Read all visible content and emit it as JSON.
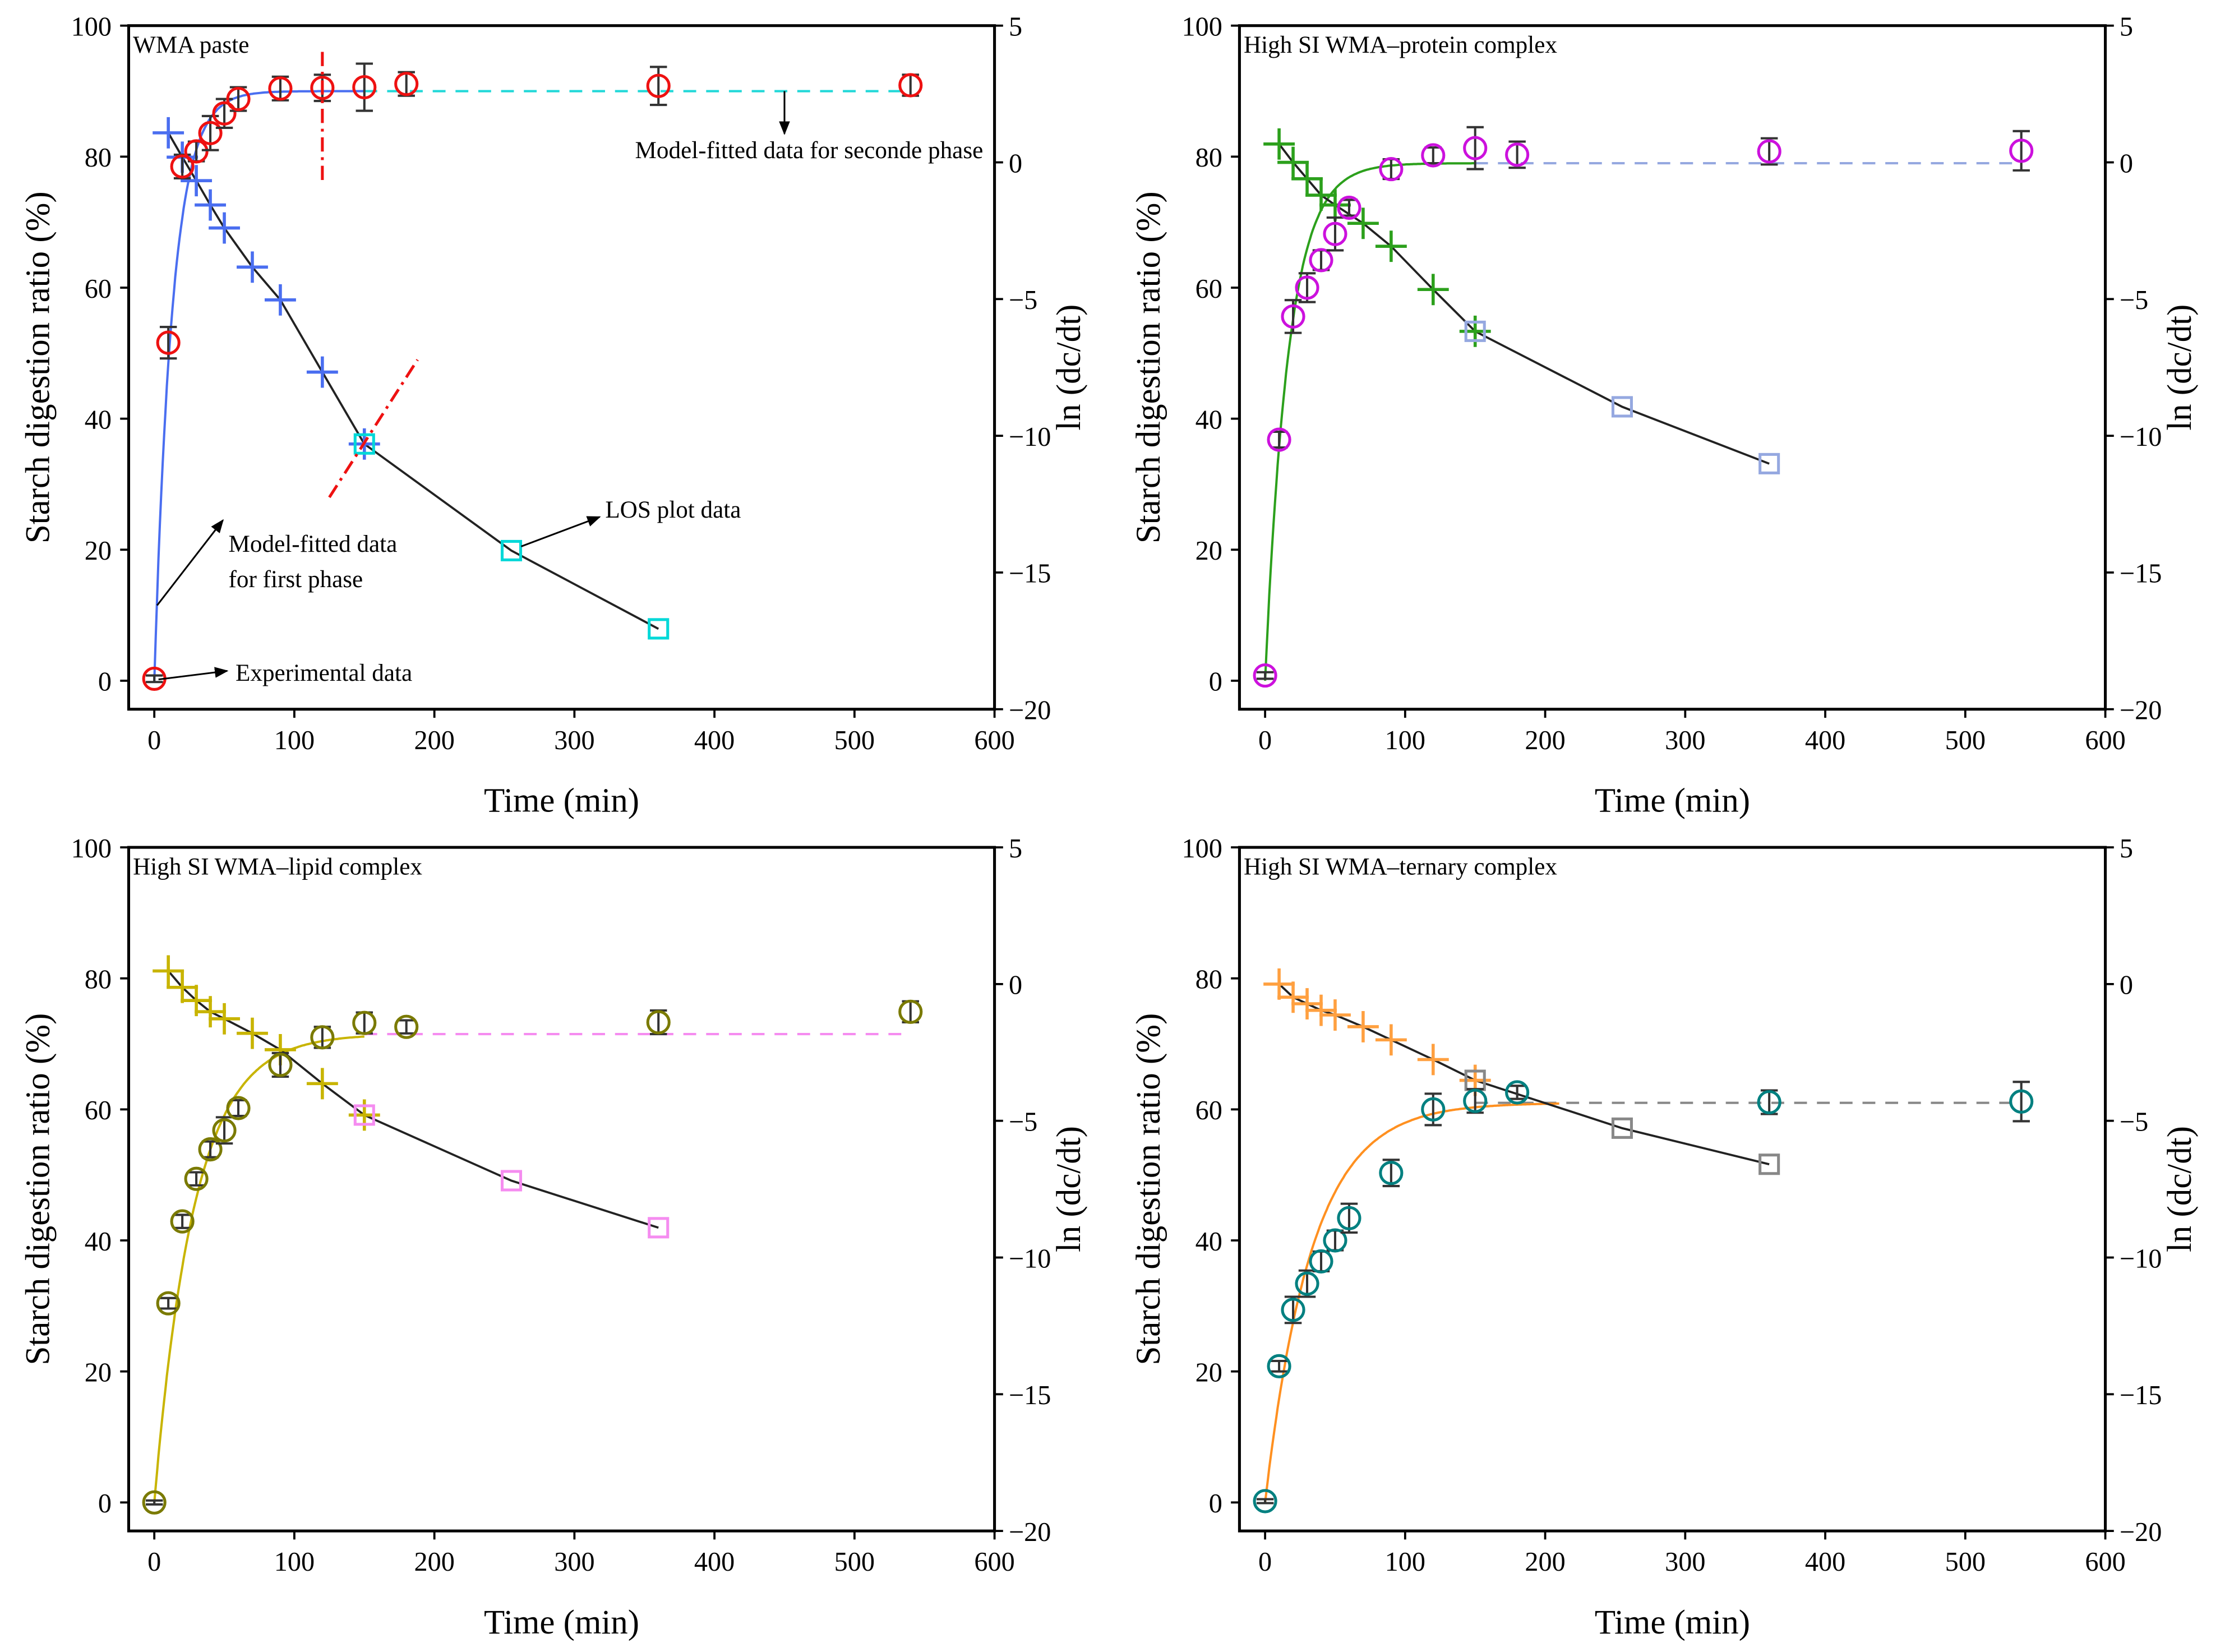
{
  "chart_data": [
    {
      "type": "scatter",
      "title": "WMA paste",
      "xlabel": "Time (min)",
      "ylabel": "Starch digestion ratio (%)",
      "y2label": "ln (dc/dt)",
      "xlim": [
        -18.3,
        600
      ],
      "ylim": [
        -4.35,
        100
      ],
      "y2lim": [
        -20,
        5
      ],
      "xticks": [
        0,
        100,
        200,
        300,
        400,
        500,
        600
      ],
      "yticks": [
        0,
        20,
        40,
        60,
        80,
        100
      ],
      "y2ticks": [
        -20,
        -15,
        -10,
        -5,
        0,
        5
      ],
      "colors": {
        "exp": "#ee1111",
        "fit": "#4a6ef0",
        "los": "#4a6ef0",
        "losq": "#00d8d8",
        "plateau": "#20d8d8",
        "line": "#222222"
      },
      "experimental": {
        "x": [
          0,
          10,
          20,
          30,
          40,
          50,
          60,
          90,
          120,
          150,
          180,
          360,
          540
        ],
        "y": [
          0.3,
          51.6,
          78.5,
          80.8,
          83.6,
          86.6,
          88.8,
          90.4,
          90.5,
          90.6,
          91.1,
          90.8,
          90.9
        ],
        "err": [
          0.5,
          2.4,
          1.8,
          1.5,
          2.6,
          2.2,
          1.8,
          1.8,
          2.0,
          3.6,
          1.8,
          2.9,
          1.6
        ]
      },
      "first_phase_fit": {
        "plateau": 90,
        "k": 0.077,
        "x_end": 150
      },
      "second_phase_plateau": {
        "value": 90,
        "x_start": 150,
        "x_end": 540
      },
      "los_first": {
        "x": [
          10,
          20,
          30,
          40,
          50,
          70,
          90,
          120,
          150
        ],
        "y": [
          1.08,
          0.19,
          -0.67,
          -1.56,
          -2.4,
          -3.83,
          -5.03,
          -7.67,
          -10.3
        ]
      },
      "los_second": {
        "x": [
          150,
          255,
          360
        ],
        "y": [
          -10.3,
          -14.2,
          -17.06
        ]
      },
      "annotations": [
        "Model-fitted data for seconde phase",
        "LOS plot data",
        "Model-fitted data",
        "for first phase",
        "Experimental data"
      ]
    },
    {
      "type": "scatter",
      "title": "High SI WMA–protein complex",
      "xlabel": "Time (min)",
      "ylabel": "Starch digestion ratio (%)",
      "y2label": "ln (dc/dt)",
      "xlim": [
        -18.3,
        600
      ],
      "ylim": [
        -4.35,
        100
      ],
      "y2lim": [
        -20,
        5
      ],
      "xticks": [
        0,
        100,
        200,
        300,
        400,
        500,
        600
      ],
      "yticks": [
        0,
        20,
        40,
        60,
        80,
        100
      ],
      "y2ticks": [
        -20,
        -15,
        -10,
        -5,
        0,
        5
      ],
      "colors": {
        "exp": "#cc11dd",
        "fit": "#2ca01c",
        "los": "#2ca01c",
        "losq": "#95a8e0",
        "plateau": "#95a8e0",
        "line": "#222222"
      },
      "experimental": {
        "x": [
          0,
          10,
          20,
          30,
          40,
          50,
          60,
          90,
          120,
          150,
          180,
          360,
          540
        ],
        "y": [
          0.8,
          36.8,
          55.6,
          60,
          64.2,
          68.2,
          72.2,
          78.1,
          80.2,
          81.3,
          80.3,
          80.8,
          80.9
        ],
        "err": [
          0.5,
          1.2,
          2.5,
          2.2,
          1.5,
          2.5,
          1.2,
          1.5,
          1.2,
          3.2,
          2.0,
          2.0,
          3.0
        ]
      },
      "first_phase_fit": {
        "plateau": 79,
        "k": 0.06,
        "x_end": 150
      },
      "second_phase_plateau": {
        "value": 79,
        "x_start": 150,
        "x_end": 540
      },
      "los_first": {
        "x": [
          10,
          20,
          30,
          40,
          50,
          70,
          90,
          120,
          150
        ],
        "y": [
          0.67,
          0,
          -0.6,
          -1.2,
          -1.56,
          -2.23,
          -3.07,
          -4.65,
          -6.18
        ]
      },
      "los_second": {
        "x": [
          150,
          255,
          360
        ],
        "y": [
          -6.18,
          -8.94,
          -11.02
        ]
      },
      "annotations": []
    },
    {
      "type": "scatter",
      "title": "High SI WMA–lipid complex",
      "xlabel": "Time (min)",
      "ylabel": "Starch digestion ratio (%)",
      "y2label": "ln (dc/dt)",
      "xlim": [
        -18.3,
        600
      ],
      "ylim": [
        -4.35,
        100
      ],
      "y2lim": [
        -20,
        5
      ],
      "xticks": [
        0,
        100,
        200,
        300,
        400,
        500,
        600
      ],
      "yticks": [
        0,
        20,
        40,
        60,
        80,
        100
      ],
      "y2ticks": [
        -20,
        -15,
        -10,
        -5,
        0,
        5
      ],
      "colors": {
        "exp": "#7a7a00",
        "fit": "#c8b400",
        "los": "#c8b400",
        "losq": "#f58cf0",
        "plateau": "#f58cf0",
        "line": "#222222"
      },
      "experimental": {
        "x": [
          0,
          10,
          20,
          30,
          40,
          50,
          60,
          90,
          120,
          150,
          180,
          360,
          540
        ],
        "y": [
          0,
          30.4,
          42.9,
          49.4,
          53.9,
          56.8,
          60.2,
          66.8,
          71,
          73.2,
          72.6,
          73.3,
          74.9
        ],
        "err": [
          0.3,
          0.8,
          1.0,
          1.0,
          1.2,
          2.0,
          1.2,
          1.8,
          1.6,
          1.6,
          1.0,
          1.8,
          1.6
        ]
      },
      "first_phase_fit": {
        "plateau": 71.5,
        "k": 0.035,
        "x_end": 150
      },
      "second_phase_plateau": {
        "value": 71.5,
        "x_start": 150,
        "x_end": 540
      },
      "los_first": {
        "x": [
          10,
          20,
          30,
          40,
          50,
          70,
          90,
          120,
          150
        ],
        "y": [
          0.48,
          -0.12,
          -0.6,
          -1.01,
          -1.27,
          -1.8,
          -2.4,
          -3.64,
          -4.79
        ]
      },
      "los_second": {
        "x": [
          150,
          255,
          360
        ],
        "y": [
          -4.79,
          -7.19,
          -8.91
        ]
      },
      "annotations": []
    },
    {
      "type": "scatter",
      "title": "High SI WMA–ternary complex",
      "xlabel": "Time (min)",
      "ylabel": "Starch digestion ratio (%)",
      "y2label": "ln (dc/dt)",
      "xlim": [
        -18.3,
        600
      ],
      "ylim": [
        -4.35,
        100
      ],
      "y2lim": [
        -20,
        5
      ],
      "xticks": [
        0,
        100,
        200,
        300,
        400,
        500,
        600
      ],
      "yticks": [
        0,
        20,
        40,
        60,
        80,
        100
      ],
      "y2ticks": [
        -20,
        -15,
        -10,
        -5,
        0,
        5
      ],
      "colors": {
        "exp": "#008080",
        "fit": "#ff9020",
        "los": "#ffa040",
        "losq": "#888888",
        "plateau": "#888888",
        "line": "#222222"
      },
      "experimental": {
        "x": [
          0,
          10,
          20,
          30,
          40,
          50,
          60,
          90,
          120,
          150,
          180,
          360,
          540
        ],
        "y": [
          0.2,
          20.8,
          29.4,
          33.4,
          36.8,
          40,
          43.4,
          50.3,
          60,
          61.3,
          62.6,
          61.1,
          61.2
        ],
        "err": [
          0.3,
          0.8,
          2.0,
          2.0,
          1.5,
          1.5,
          2.2,
          2.0,
          2.4,
          1.8,
          1.0,
          1.8,
          3.0
        ]
      },
      "first_phase_fit": {
        "plateau": 61,
        "k": 0.03,
        "x_end": 210
      },
      "second_phase_plateau": {
        "value": 61,
        "x_start": 150,
        "x_end": 540
      },
      "los_first": {
        "x": [
          10,
          20,
          30,
          40,
          50,
          70,
          90,
          120,
          150
        ],
        "y": [
          0,
          -0.48,
          -0.72,
          -0.96,
          -1.13,
          -1.56,
          -2.04,
          -2.76,
          -3.52
        ]
      },
      "los_second": {
        "x": [
          150,
          255,
          360
        ],
        "y": [
          -3.52,
          -5.27,
          -6.59
        ]
      },
      "annotations": []
    }
  ]
}
